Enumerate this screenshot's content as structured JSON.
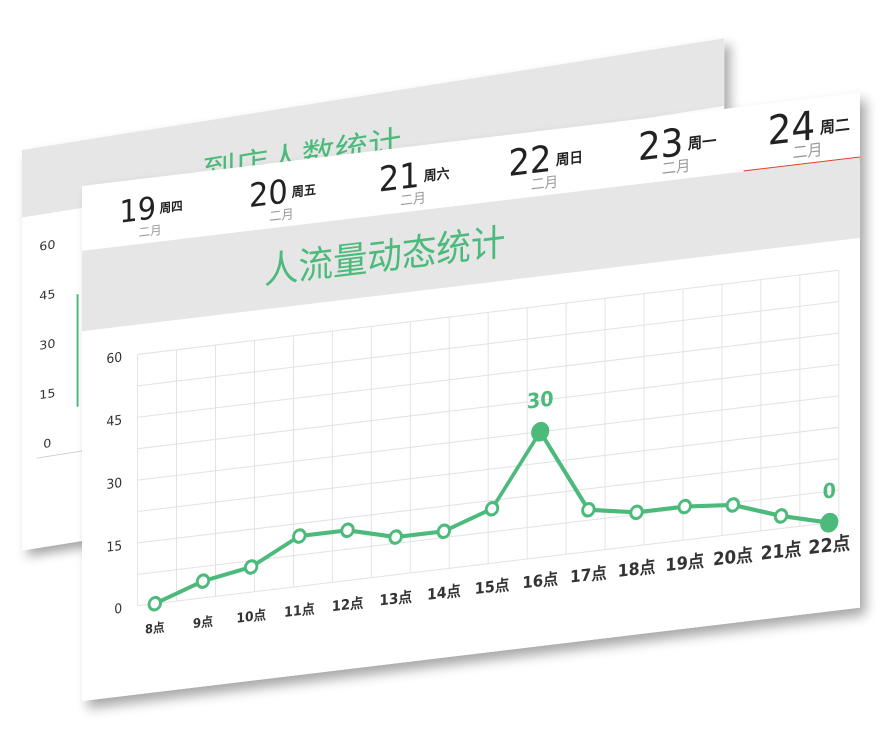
{
  "back_card": {
    "title": "到店人数统计",
    "y_ticks": [
      "60",
      "45",
      "30",
      "15",
      "0"
    ]
  },
  "date_tabs": [
    {
      "day": "19",
      "weekday": "周四",
      "month": "二月"
    },
    {
      "day": "20",
      "weekday": "周五",
      "month": "二月"
    },
    {
      "day": "21",
      "weekday": "周六",
      "month": "二月"
    },
    {
      "day": "22",
      "weekday": "周日",
      "month": "二月"
    },
    {
      "day": "23",
      "weekday": "周一",
      "month": "二月"
    },
    {
      "day": "24",
      "weekday": "周二",
      "month": "二月"
    }
  ],
  "selected_tab_index": 5,
  "colors": {
    "accent": "#4cba7b",
    "tab_underline": "#e2432a",
    "title_bar": "#e6e6e6",
    "grid": "#e2e2e2",
    "text_dark": "#222222",
    "text_muted": "#999999"
  },
  "chart_data": {
    "type": "line",
    "title": "人流量动态统计",
    "xlabel": "",
    "ylabel": "",
    "ylim": [
      0,
      60
    ],
    "y_ticks": [
      "60",
      "45",
      "30",
      "15",
      "0"
    ],
    "grid": true,
    "categories": [
      "8点",
      "9点",
      "10点",
      "11点",
      "12点",
      "13点",
      "14点",
      "15点",
      "16点",
      "17点",
      "18点",
      "19点",
      "20点",
      "21点",
      "22点"
    ],
    "series": [
      {
        "values": [
          0,
          4,
          6,
          12,
          12,
          9,
          9,
          13,
          30,
          10,
          8,
          8,
          7,
          3,
          0
        ]
      }
    ],
    "annotations": [
      {
        "category": "16点",
        "label": "30"
      },
      {
        "category": "22点",
        "label": "0"
      }
    ]
  }
}
